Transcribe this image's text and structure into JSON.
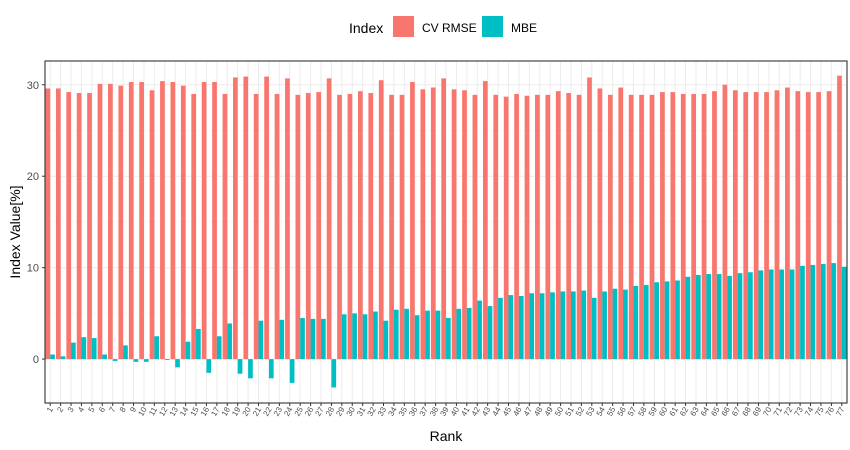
{
  "chart_data": {
    "type": "bar",
    "xlabel": "Rank",
    "ylabel": "Index Value[%]",
    "ylim": [
      -4.8,
      32.6
    ],
    "yticks": [
      0,
      10,
      20,
      30
    ],
    "grid": true,
    "legend": {
      "title": "Index",
      "position": "top",
      "entries": [
        "CV RMSE",
        "MBE"
      ]
    },
    "categories": [
      "1",
      "2",
      "3",
      "4",
      "5",
      "6",
      "7",
      "8",
      "9",
      "10",
      "11",
      "12",
      "13",
      "14",
      "15",
      "16",
      "17",
      "18",
      "19",
      "20",
      "21",
      "22",
      "23",
      "24",
      "25",
      "26",
      "27",
      "28",
      "29",
      "30",
      "31",
      "32",
      "33",
      "34",
      "35",
      "36",
      "37",
      "38",
      "39",
      "40",
      "41",
      "42",
      "43",
      "44",
      "45",
      "46",
      "47",
      "48",
      "49",
      "50",
      "51",
      "52",
      "53",
      "54",
      "55",
      "56",
      "57",
      "58",
      "59",
      "60",
      "61",
      "62",
      "63",
      "64",
      "65",
      "66",
      "67",
      "68",
      "69",
      "70",
      "71",
      "72",
      "73",
      "74",
      "75",
      "76",
      "77"
    ],
    "series": [
      {
        "name": "CV RMSE",
        "color": "#F8766D",
        "values": [
          29.6,
          29.6,
          29.2,
          29.1,
          29.1,
          30.1,
          30.1,
          29.9,
          30.3,
          30.3,
          29.4,
          30.4,
          30.3,
          29.9,
          29.0,
          30.3,
          30.3,
          29.0,
          30.8,
          30.9,
          29.0,
          30.9,
          29.0,
          30.7,
          28.9,
          29.1,
          29.2,
          30.7,
          28.9,
          29.0,
          29.3,
          29.1,
          30.5,
          28.9,
          28.9,
          30.3,
          29.5,
          29.7,
          30.7,
          29.5,
          29.4,
          28.9,
          30.4,
          28.9,
          28.7,
          29.0,
          28.8,
          28.9,
          28.9,
          29.3,
          29.1,
          28.9,
          30.8,
          29.6,
          28.9,
          29.7,
          28.9,
          28.9,
          28.9,
          29.2,
          29.2,
          29.0,
          29.0,
          29.0,
          29.3,
          30.0,
          29.4,
          29.2,
          29.2,
          29.2,
          29.4,
          29.7,
          29.3,
          29.2,
          29.2,
          29.3,
          31.0
        ]
      },
      {
        "name": "MBE",
        "color": "#00BFC4",
        "values": [
          0.5,
          0.3,
          1.8,
          2.4,
          2.3,
          0.5,
          -0.2,
          1.5,
          -0.3,
          -0.3,
          2.5,
          -0.1,
          -0.9,
          1.9,
          3.3,
          -1.5,
          2.5,
          3.9,
          -1.6,
          -2.1,
          4.2,
          -2.1,
          4.3,
          -2.6,
          4.5,
          4.4,
          4.4,
          -3.1,
          4.9,
          5.0,
          4.9,
          5.2,
          4.2,
          5.4,
          5.5,
          4.8,
          5.3,
          5.3,
          4.5,
          5.5,
          5.6,
          6.4,
          5.8,
          6.7,
          7.0,
          6.9,
          7.2,
          7.2,
          7.3,
          7.4,
          7.4,
          7.5,
          6.7,
          7.4,
          7.7,
          7.6,
          8.0,
          8.1,
          8.4,
          8.5,
          8.6,
          9.0,
          9.2,
          9.3,
          9.3,
          9.1,
          9.4,
          9.5,
          9.7,
          9.8,
          9.8,
          9.8,
          10.2,
          10.3,
          10.4,
          10.5,
          10.1
        ]
      }
    ]
  }
}
